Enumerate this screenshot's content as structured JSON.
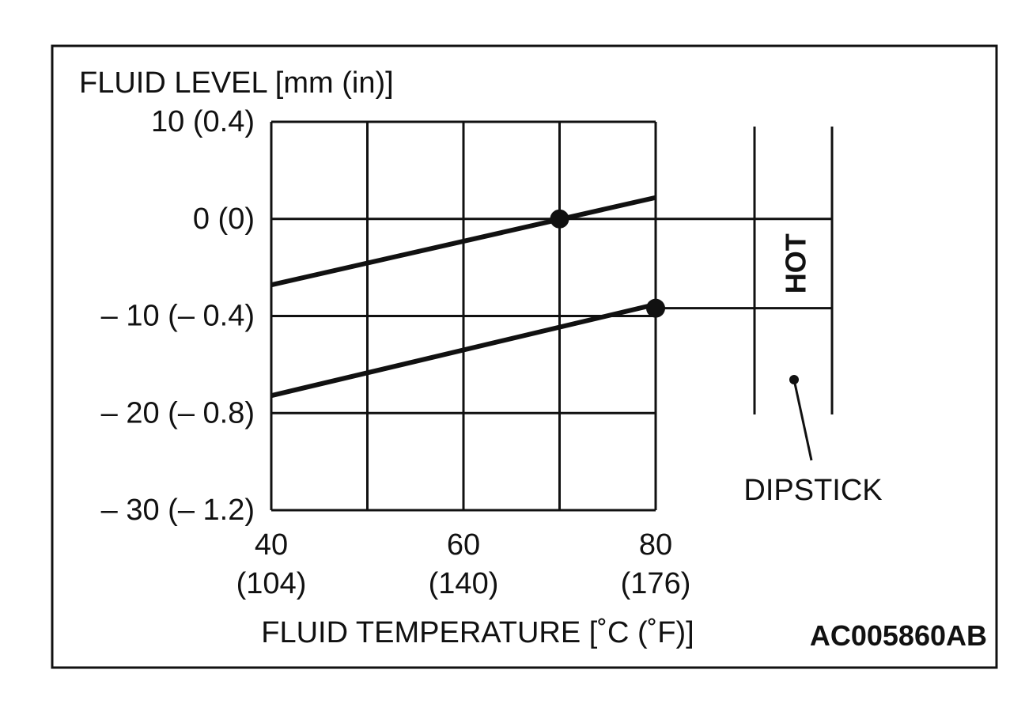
{
  "chart_data": {
    "type": "line",
    "ylabel": "FLUID LEVEL [mm (in)]",
    "xlabel": "FLUID TEMPERATURE [˚C (˚F)]",
    "xlim": [
      40,
      80
    ],
    "ylim": [
      -30,
      10
    ],
    "grid": true,
    "x_ticks": [
      {
        "value": 40,
        "label": "40",
        "sub": "(104)"
      },
      {
        "value": 60,
        "label": "60",
        "sub": "(140)"
      },
      {
        "value": 80,
        "label": "80",
        "sub": "(176)"
      }
    ],
    "y_ticks": [
      {
        "value": 10,
        "label": "10 (0.4)"
      },
      {
        "value": 0,
        "label": "0 (0)"
      },
      {
        "value": -10,
        "label": "– 10 (– 0.4)"
      },
      {
        "value": -20,
        "label": "– 20 (– 0.8)"
      },
      {
        "value": -30,
        "label": "– 30 (– 1.2)"
      }
    ],
    "x_grid": [
      40,
      50,
      60,
      70,
      80
    ],
    "y_grid": [
      10,
      0,
      -10,
      -20,
      -30
    ],
    "series": [
      {
        "x": [
          40,
          80
        ],
        "y": [
          -6.8,
          2.2
        ]
      },
      {
        "x": [
          40,
          80
        ],
        "y": [
          -18.2,
          -8.8
        ]
      }
    ],
    "points": [
      {
        "x": 70,
        "y": 0
      },
      {
        "x": 80,
        "y": -9.2
      }
    ],
    "dipstick": {
      "label": "DIPSTICK",
      "hot_label": "HOT",
      "hot_range": [
        -9.2,
        0
      ]
    },
    "code": "AC005860AB"
  }
}
